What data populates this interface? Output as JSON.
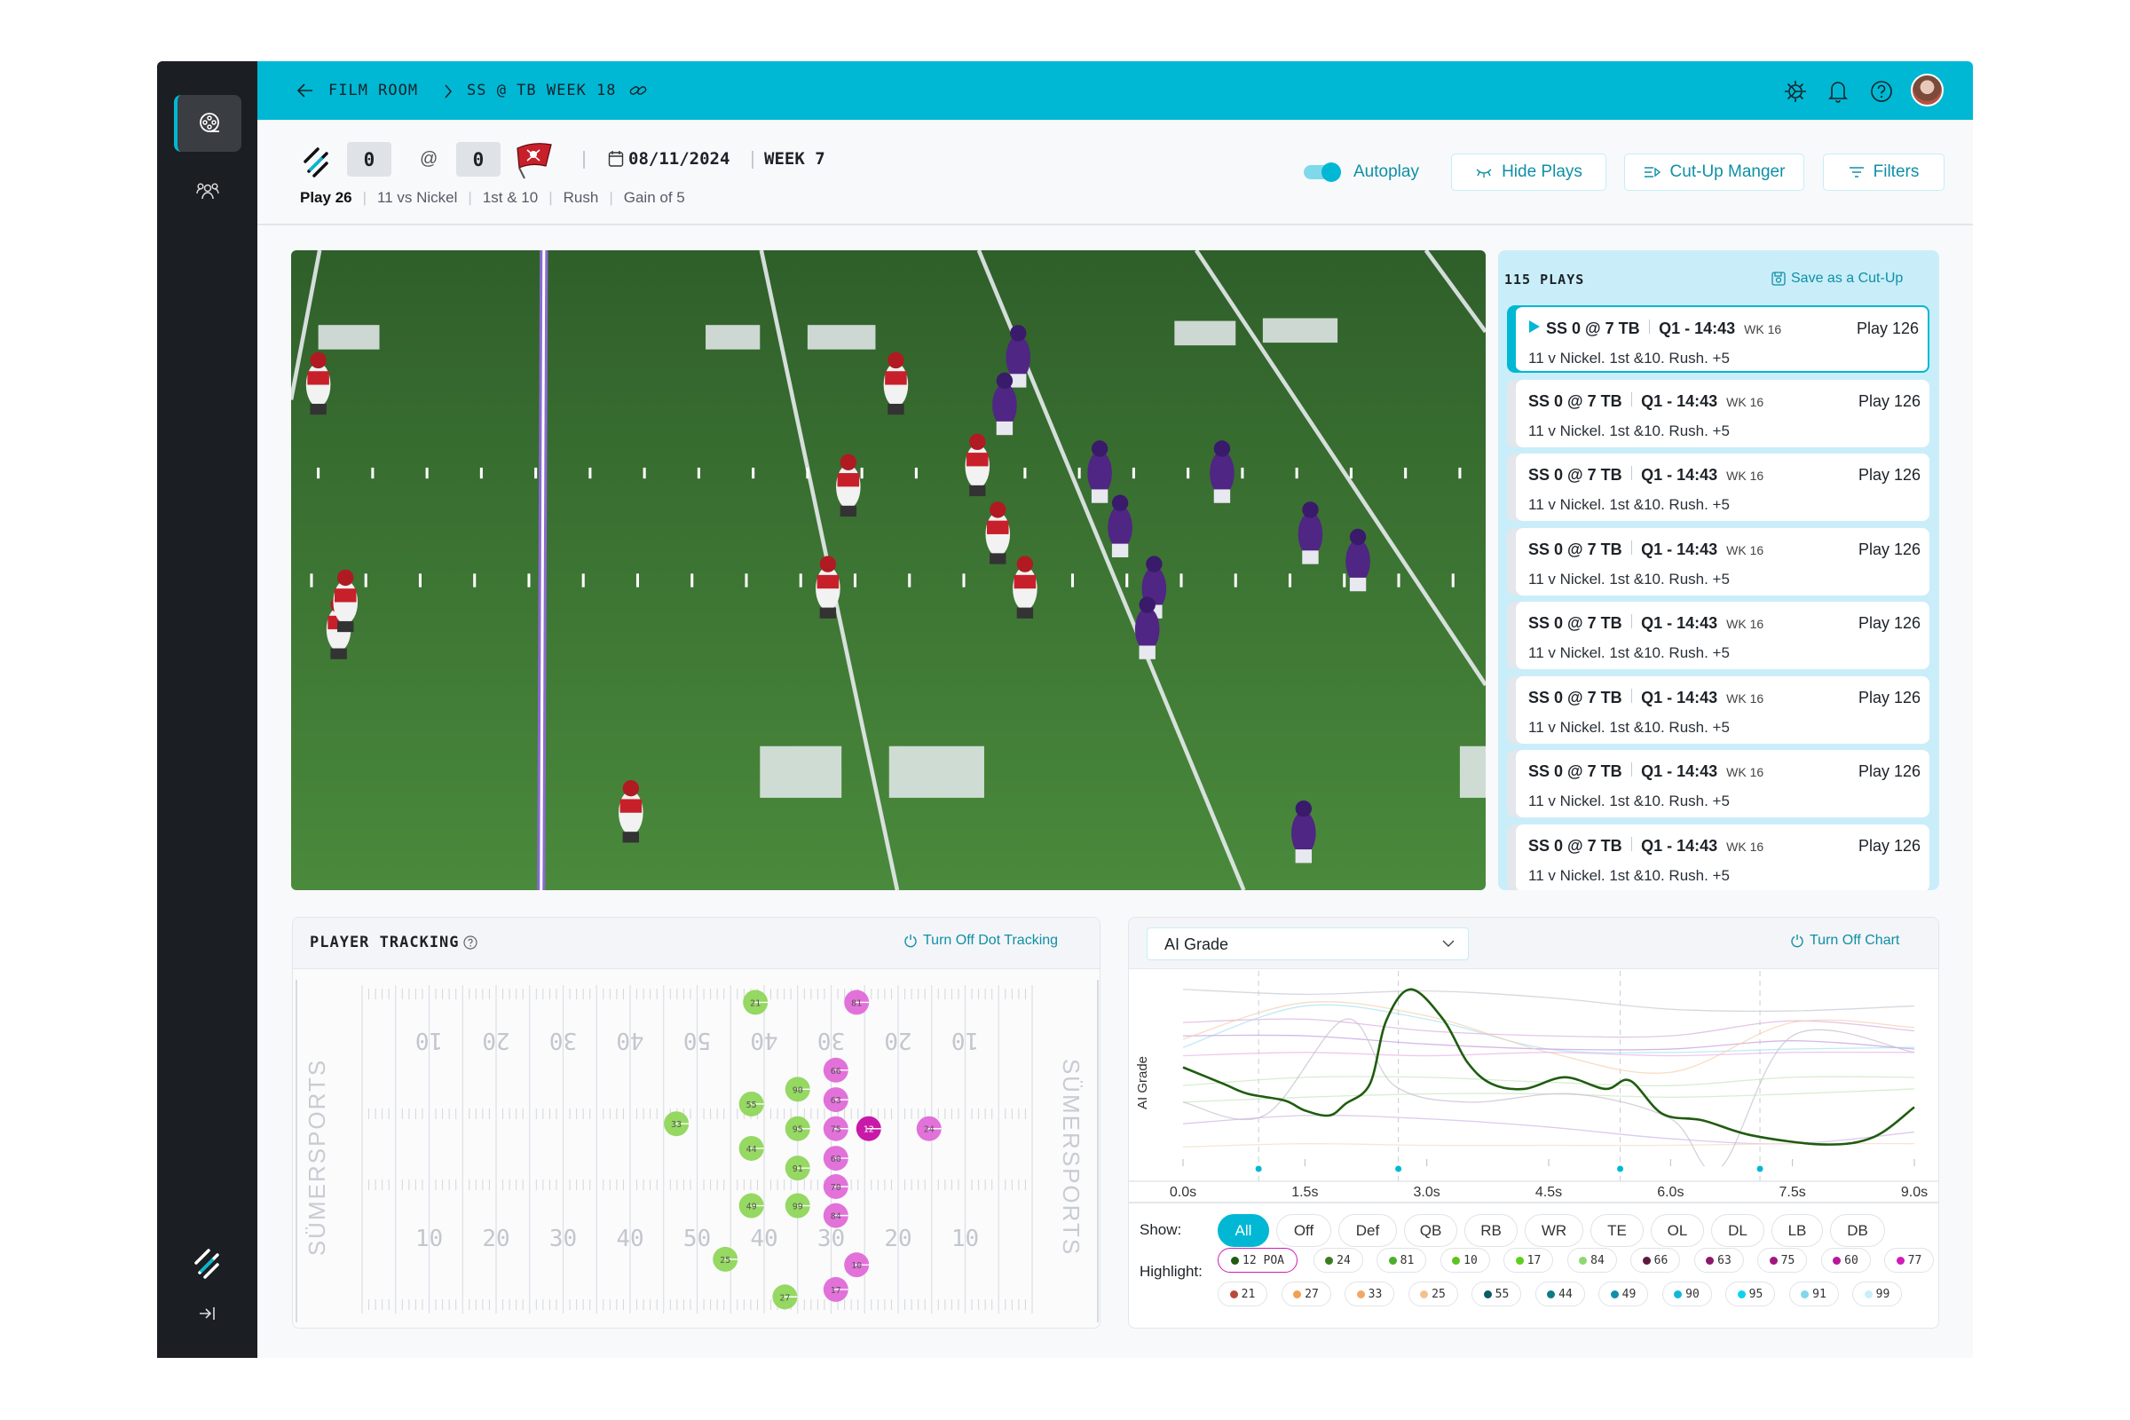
{
  "breadcrumb": {
    "back_icon": "arrow-left-icon",
    "root": "FILM ROOM",
    "current": "SS @ TB WEEK 18",
    "link_icon": "link-icon"
  },
  "topbar_icons": [
    "settings-icon",
    "bell-icon",
    "help-icon",
    "avatar"
  ],
  "game": {
    "home_score": "0",
    "at": "@",
    "away_score": "0",
    "date": "08/11/2024",
    "week": "WEEK 7"
  },
  "play_meta": {
    "play": "Play 26",
    "personnel": "11 vs Nickel",
    "down": "1st & 10",
    "type": "Rush",
    "result": "Gain of 5"
  },
  "controls": {
    "autoplay_label": "Autoplay",
    "autoplay_on": true,
    "hide_plays": "Hide Plays",
    "cutup_manager": "Cut-Up Manger",
    "filters": "Filters"
  },
  "colors": {
    "accent": "#00b8d4",
    "sidebar": "#1b1e22",
    "link": "#0f8fa6"
  },
  "plays": {
    "count_label": "115 PLAYS",
    "save_label": "Save as a Cut-Up",
    "items": [
      {
        "score": "SS 0 @ 7 TB",
        "clock": "Q1 - 14:43",
        "week": "WK 16",
        "play": "Play 126",
        "desc": "11 v Nickel. 1st &10. Rush. +5",
        "selected": true
      },
      {
        "score": "SS 0 @ 7 TB",
        "clock": "Q1 - 14:43",
        "week": "WK 16",
        "play": "Play 126",
        "desc": "11 v Nickel. 1st &10. Rush. +5"
      },
      {
        "score": "SS 0 @ 7 TB",
        "clock": "Q1 - 14:43",
        "week": "WK 16",
        "play": "Play 126",
        "desc": "11 v Nickel. 1st &10. Rush. +5"
      },
      {
        "score": "SS 0 @ 7 TB",
        "clock": "Q1 - 14:43",
        "week": "WK 16",
        "play": "Play 126",
        "desc": "11 v Nickel. 1st &10. Rush. +5"
      },
      {
        "score": "SS 0 @ 7 TB",
        "clock": "Q1 - 14:43",
        "week": "WK 16",
        "play": "Play 126",
        "desc": "11 v Nickel. 1st &10. Rush. +5"
      },
      {
        "score": "SS 0 @ 7 TB",
        "clock": "Q1 - 14:43",
        "week": "WK 16",
        "play": "Play 126",
        "desc": "11 v Nickel. 1st &10. Rush. +5"
      },
      {
        "score": "SS 0 @ 7 TB",
        "clock": "Q1 - 14:43",
        "week": "WK 16",
        "play": "Play 126",
        "desc": "11 v Nickel. 1st &10. Rush. +5"
      },
      {
        "score": "SS 0 @ 7 TB",
        "clock": "Q1 - 14:43",
        "week": "WK 16",
        "play": "Play 126",
        "desc": "11 v Nickel. 1st &10. Rush. +5"
      }
    ]
  },
  "tracking": {
    "title": "PLAYER TRACKING",
    "toggle_label": "Turn Off Dot Tracking",
    "brand": "SÜMERSPORTS",
    "yard_numbers": [
      "10",
      "20",
      "30",
      "40",
      "50",
      "40",
      "30",
      "20",
      "10"
    ],
    "colors": {
      "defense": "#8fd65a",
      "offense": "#e06ad8",
      "highlight": "#c81aa8"
    },
    "players": [
      {
        "n": "21",
        "side": "defense",
        "x_yd": 58.7,
        "y_yd": 2.8
      },
      {
        "n": "81",
        "side": "offense",
        "x_yd": 73.8,
        "y_yd": 2.8
      },
      {
        "n": "66",
        "side": "offense",
        "x_yd": 70.7,
        "y_yd": 13.8
      },
      {
        "n": "90",
        "side": "defense",
        "x_yd": 65.0,
        "y_yd": 16.9
      },
      {
        "n": "63",
        "side": "offense",
        "x_yd": 70.7,
        "y_yd": 18.6
      },
      {
        "n": "55",
        "side": "defense",
        "x_yd": 58.1,
        "y_yd": 19.3
      },
      {
        "n": "33",
        "side": "defense",
        "x_yd": 46.9,
        "y_yd": 22.5
      },
      {
        "n": "95",
        "side": "defense",
        "x_yd": 65.0,
        "y_yd": 23.3
      },
      {
        "n": "75",
        "side": "offense",
        "x_yd": 70.7,
        "y_yd": 23.3
      },
      {
        "n": "12",
        "side": "highlight",
        "x_yd": 75.6,
        "y_yd": 23.3
      },
      {
        "n": "24",
        "side": "offense",
        "x_yd": 84.6,
        "y_yd": 23.3
      },
      {
        "n": "44",
        "side": "defense",
        "x_yd": 58.1,
        "y_yd": 26.5
      },
      {
        "n": "60",
        "side": "offense",
        "x_yd": 70.7,
        "y_yd": 28.1
      },
      {
        "n": "91",
        "side": "defense",
        "x_yd": 65.0,
        "y_yd": 29.7
      },
      {
        "n": "70",
        "side": "offense",
        "x_yd": 70.7,
        "y_yd": 32.7
      },
      {
        "n": "49",
        "side": "defense",
        "x_yd": 58.1,
        "y_yd": 35.8
      },
      {
        "n": "99",
        "side": "defense",
        "x_yd": 65.0,
        "y_yd": 35.8
      },
      {
        "n": "84",
        "side": "offense",
        "x_yd": 70.7,
        "y_yd": 37.4
      },
      {
        "n": "25",
        "side": "defense",
        "x_yd": 54.2,
        "y_yd": 44.5
      },
      {
        "n": "10",
        "side": "offense",
        "x_yd": 73.8,
        "y_yd": 45.4
      },
      {
        "n": "17",
        "side": "offense",
        "x_yd": 70.7,
        "y_yd": 49.4
      },
      {
        "n": "27",
        "side": "defense",
        "x_yd": 63.1,
        "y_yd": 50.6
      }
    ]
  },
  "grade_panel": {
    "metric_select": "AI Grade",
    "toggle_label": "Turn Off Chart",
    "show_label": "Show:",
    "highlight_label": "Highlight:",
    "show_options": [
      "All",
      "Off",
      "Def",
      "QB",
      "RB",
      "WR",
      "TE",
      "OL",
      "DL",
      "LB",
      "DB"
    ],
    "show_selected": "All",
    "highlights": [
      {
        "label": "12 POA",
        "color": "#1f5c0f",
        "selected": true
      },
      {
        "label": "24",
        "color": "#3a7d1e"
      },
      {
        "label": "81",
        "color": "#4caf2a"
      },
      {
        "label": "10",
        "color": "#5cc41a"
      },
      {
        "label": "17",
        "color": "#5cd01a"
      },
      {
        "label": "84",
        "color": "#90d870"
      },
      {
        "label": "66",
        "color": "#5c1a3c"
      },
      {
        "label": "63",
        "color": "#8a1a6a"
      },
      {
        "label": "75",
        "color": "#a0187e"
      },
      {
        "label": "60",
        "color": "#b8189a"
      },
      {
        "label": "77",
        "color": "#d01cb8"
      },
      {
        "label": "21",
        "color": "#b84a3a"
      },
      {
        "label": "27",
        "color": "#f0a050"
      },
      {
        "label": "33",
        "color": "#f0a868"
      },
      {
        "label": "25",
        "color": "#f5c090"
      },
      {
        "label": "55",
        "color": "#0a5a6a"
      },
      {
        "label": "44",
        "color": "#0f7a8a"
      },
      {
        "label": "49",
        "color": "#1090a8"
      },
      {
        "label": "90",
        "color": "#10b8d8"
      },
      {
        "label": "95",
        "color": "#10d0f0"
      },
      {
        "label": "91",
        "color": "#80d8e8"
      },
      {
        "label": "99",
        "color": "#c8f0f8"
      }
    ]
  },
  "chart_data": {
    "type": "line",
    "ylabel": "AI Grade",
    "xlabel": "",
    "x_ticks": [
      "0.0s",
      "1.5s",
      "3.0s",
      "4.5s",
      "6.0s",
      "7.5s",
      "9.0s"
    ],
    "xlim": [
      0,
      9
    ],
    "ylim": [
      0,
      100
    ],
    "grid": false,
    "markers_s": [
      0.93,
      2.65,
      5.38,
      7.1
    ],
    "marker_color": "#00b8d4",
    "highlight_series": {
      "color": "#1f5c0f",
      "t": [
        0,
        0.5,
        0.8,
        1.25,
        1.5,
        1.8,
        2.0,
        2.3,
        2.5,
        2.8,
        3.2,
        3.5,
        3.8,
        4.2,
        4.7,
        5.2,
        5.5,
        5.9,
        6.4,
        7.0,
        7.9,
        8.5,
        9.0
      ],
      "v": [
        51,
        41,
        35,
        31,
        25,
        22,
        29,
        41,
        79,
        98,
        80,
        54,
        41,
        38,
        45,
        38,
        43,
        23,
        19,
        10,
        4.5,
        9,
        27
      ]
    },
    "background_series": [
      {
        "color": "#c9c9d6",
        "t": [
          0,
          1.5,
          3,
          4.5,
          6,
          7.5,
          9
        ],
        "v": [
          98,
          95,
          97,
          93,
          86,
          85,
          88
        ]
      },
      {
        "color": "#a8e4f0",
        "t": [
          0,
          1.5,
          3,
          4.5,
          6,
          7.5,
          9
        ],
        "v": [
          63,
          88,
          80,
          62,
          60,
          62,
          63
        ]
      },
      {
        "color": "#dcb0e0",
        "t": [
          0,
          1.5,
          3,
          4.5,
          6,
          7.5,
          9
        ],
        "v": [
          78,
          80,
          73,
          70,
          70,
          79,
          73
        ]
      },
      {
        "color": "#c5a0e0",
        "t": [
          0,
          1.5,
          3,
          4.5,
          6,
          7.5,
          9
        ],
        "v": [
          70,
          70,
          65,
          62,
          62,
          67,
          62
        ]
      },
      {
        "color": "#f5d0b0",
        "t": [
          0,
          1.5,
          3,
          4.5,
          6,
          7.5,
          9
        ],
        "v": [
          68,
          90,
          82,
          60,
          48,
          78,
          75
        ]
      },
      {
        "color": "#e8b8e8",
        "t": [
          0,
          1.5,
          3,
          4.5,
          6,
          7.5,
          9
        ],
        "v": [
          58,
          60,
          58,
          60,
          58,
          60,
          60
        ]
      },
      {
        "color": "#c8e8c0",
        "t": [
          0,
          1.5,
          3,
          4.5,
          6,
          7.5,
          9
        ],
        "v": [
          40,
          45,
          45,
          42,
          40,
          45,
          45
        ]
      },
      {
        "color": "#c8e8c0",
        "t": [
          0,
          1.5,
          3,
          4.5,
          6,
          7.5,
          9
        ],
        "v": [
          30,
          33,
          35,
          35,
          33,
          35,
          38
        ]
      },
      {
        "color": "#d0b8e8",
        "t": [
          0,
          1.5,
          3,
          4.5,
          6,
          7.5,
          9
        ],
        "v": [
          17,
          22,
          20,
          15,
          8,
          5,
          12
        ]
      },
      {
        "color": "#f5dcc5",
        "t": [
          0,
          1.5,
          3,
          4.5,
          6,
          7.5,
          9
        ],
        "v": [
          3,
          5,
          4,
          4,
          4,
          5,
          5
        ]
      },
      {
        "color": "#c8c0d0",
        "t": [
          0,
          1,
          2,
          2.6,
          3.5,
          4.8,
          6,
          6.6,
          7.5,
          9
        ],
        "v": [
          30,
          22,
          80,
          40,
          30,
          35,
          20,
          -10,
          70,
          60
        ]
      }
    ]
  }
}
